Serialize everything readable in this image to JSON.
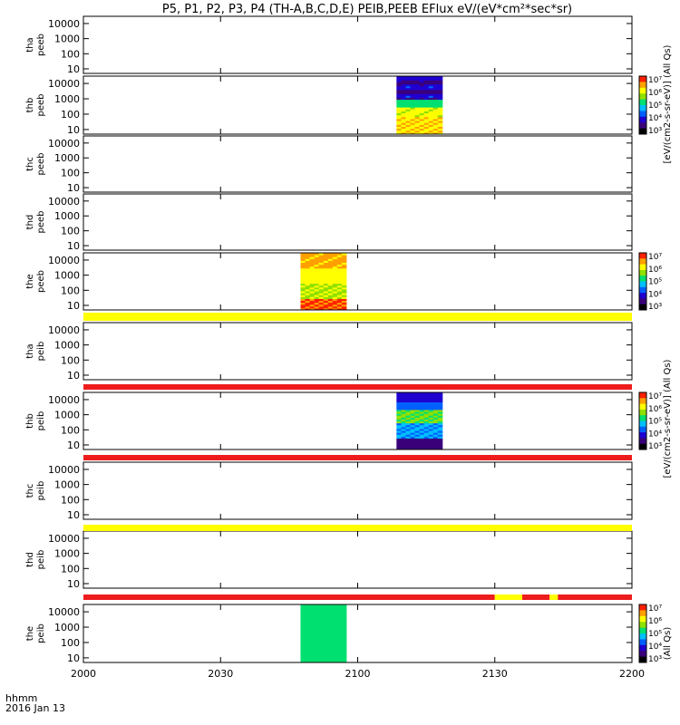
{
  "chart_data": {
    "type": "heatmap",
    "title": "P5, P1, P2, P3, P4 (TH-A,B,C,D,E) PEIB,PEEB EFlux eV/(eV*cm²*sec*sr)",
    "x_ticks": [
      "2000",
      "2030",
      "2100",
      "2130",
      "2200"
    ],
    "x_minutes": [
      0,
      30,
      60,
      90,
      120
    ],
    "x_labels": [
      "hhmm",
      "2016 Jan 13"
    ],
    "xlim_minutes": [
      0,
      120
    ],
    "y_scale": "log",
    "ylim": [
      5,
      30000
    ],
    "y_ticks": [
      "10",
      "100",
      "1000",
      "10000"
    ],
    "y_tick_values": [
      10,
      100,
      1000,
      10000
    ],
    "cb_ticks": [
      "10³",
      "10⁴",
      "10⁵",
      "10⁶",
      "10⁷"
    ],
    "cb_labels": [
      "[eV/(cm2-s-sr-eV)] (All Qs)",
      "[eV/(cm2-s-sr-eV)] (All Qs)",
      "(All Qs)"
    ],
    "colors": {
      "red": "#ee1d1d",
      "yellow": "#ffff00",
      "black": "#000000",
      "colorbar": [
        "#000000",
        "#3a007a",
        "#2000d0",
        "#0060ff",
        "#00c0ff",
        "#00e070",
        "#90e000",
        "#ffff00",
        "#ffa000",
        "#ff2000"
      ]
    },
    "panels": [
      {
        "label": [
          "tha",
          "peeb"
        ],
        "data": []
      },
      {
        "label": [
          "thb",
          "peeb"
        ],
        "data": [
          {
            "t0": 68.5,
            "t1": 78.5,
            "profile": "thb_peeb"
          }
        ]
      },
      {
        "label": [
          "thc",
          "peeb"
        ],
        "data": []
      },
      {
        "label": [
          "thd",
          "peeb"
        ],
        "data": []
      },
      {
        "label": [
          "the",
          "peeb"
        ],
        "data": [
          {
            "t0": 47.5,
            "t1": 57.5,
            "profile": "the_peeb"
          }
        ]
      },
      {
        "label": [
          "tha",
          "peib"
        ],
        "data": []
      },
      {
        "label": [
          "thb",
          "peib"
        ],
        "data": [
          {
            "t0": 68.5,
            "t1": 78.5,
            "profile": "thb_peib"
          }
        ]
      },
      {
        "label": [
          "thc",
          "peib"
        ],
        "data": []
      },
      {
        "label": [
          "thd",
          "peib"
        ],
        "data": []
      },
      {
        "label": [
          "the",
          "peib"
        ],
        "data": [
          {
            "t0": 47.5,
            "t1": 57.5,
            "profile": "the_peib"
          }
        ]
      }
    ],
    "quality_bars": [
      {
        "after_panel": 4,
        "segments": [
          {
            "t0": 0,
            "t1": 120,
            "color": "yellow"
          }
        ]
      },
      {
        "after_panel": 5,
        "segments": [
          {
            "t0": 0,
            "t1": 120,
            "color": "red"
          }
        ]
      },
      {
        "after_panel": 6,
        "segments": [
          {
            "t0": 0,
            "t1": 120,
            "color": "red"
          }
        ]
      },
      {
        "after_panel": 7,
        "segments": [
          {
            "t0": 0,
            "t1": 120,
            "color": "yellow"
          }
        ]
      },
      {
        "after_panel": 8,
        "segments": [
          {
            "t0": 0,
            "t1": 90,
            "color": "red"
          },
          {
            "t0": 90,
            "t1": 96,
            "color": "yellow"
          },
          {
            "t0": 96,
            "t1": 102,
            "color": "red"
          },
          {
            "t0": 102,
            "t1": 103.8,
            "color": "yellow"
          },
          {
            "t0": 103.8,
            "t1": 120,
            "color": "red"
          }
        ]
      }
    ],
    "colorbar_panels": [
      1,
      4,
      6,
      9
    ]
  }
}
